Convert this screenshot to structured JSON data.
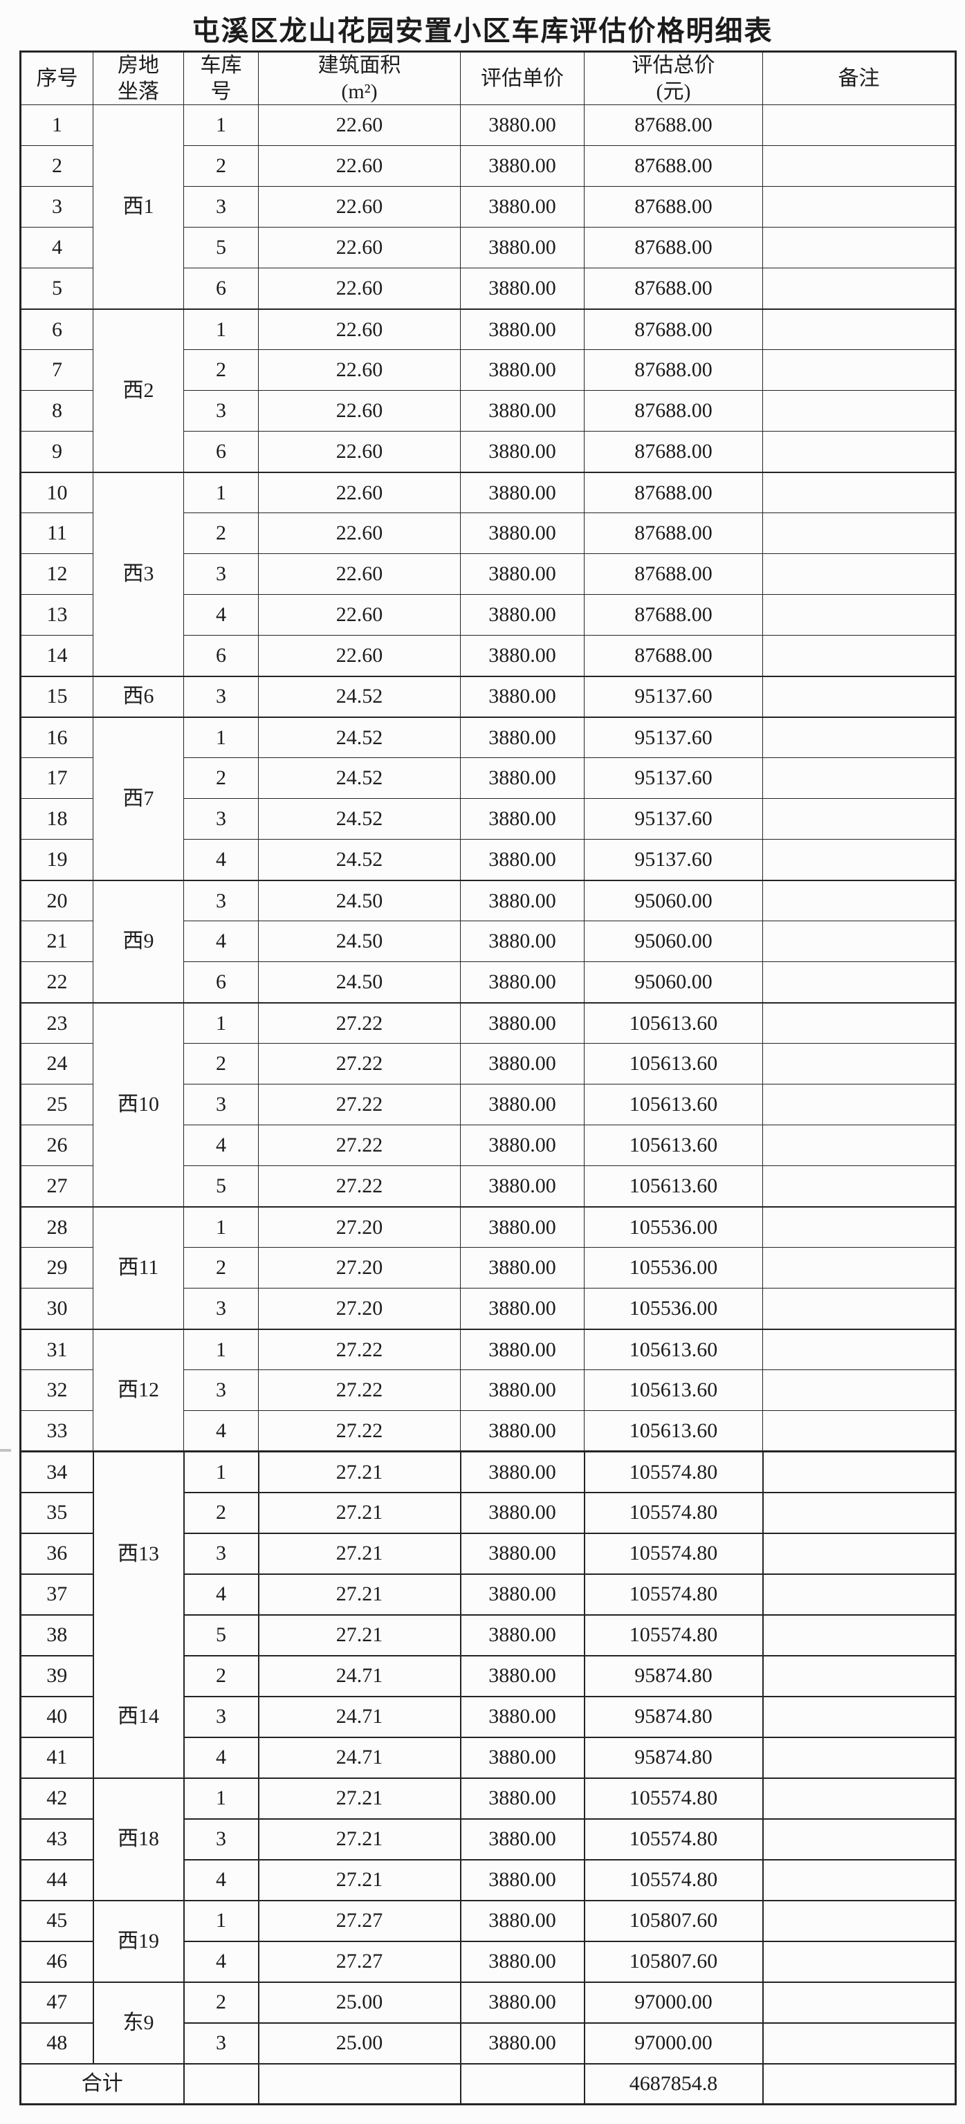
{
  "page": {
    "title": "屯溪区龙山花园安置小区车库评估价格明细表"
  },
  "table": {
    "headers": {
      "no": "序号",
      "location": "房地\n坐落",
      "garage": "车库\n号",
      "area": "建筑面积\n(m²)",
      "unit_price": "评估单价",
      "total_price": "评估总价\n(元)",
      "note": "备注"
    },
    "groups": [
      {
        "location": "西1",
        "items": [
          {
            "no": "1",
            "garage": "1",
            "area": "22.60",
            "unit_price": "3880.00",
            "total_price": "87688.00",
            "note": ""
          },
          {
            "no": "2",
            "garage": "2",
            "area": "22.60",
            "unit_price": "3880.00",
            "total_price": "87688.00",
            "note": ""
          },
          {
            "no": "3",
            "garage": "3",
            "area": "22.60",
            "unit_price": "3880.00",
            "total_price": "87688.00",
            "note": ""
          },
          {
            "no": "4",
            "garage": "5",
            "area": "22.60",
            "unit_price": "3880.00",
            "total_price": "87688.00",
            "note": ""
          },
          {
            "no": "5",
            "garage": "6",
            "area": "22.60",
            "unit_price": "3880.00",
            "total_price": "87688.00",
            "note": ""
          }
        ]
      },
      {
        "location": "西2",
        "items": [
          {
            "no": "6",
            "garage": "1",
            "area": "22.60",
            "unit_price": "3880.00",
            "total_price": "87688.00",
            "note": ""
          },
          {
            "no": "7",
            "garage": "2",
            "area": "22.60",
            "unit_price": "3880.00",
            "total_price": "87688.00",
            "note": ""
          },
          {
            "no": "8",
            "garage": "3",
            "area": "22.60",
            "unit_price": "3880.00",
            "total_price": "87688.00",
            "note": ""
          },
          {
            "no": "9",
            "garage": "6",
            "area": "22.60",
            "unit_price": "3880.00",
            "total_price": "87688.00",
            "note": ""
          }
        ]
      },
      {
        "location": "西3",
        "items": [
          {
            "no": "10",
            "garage": "1",
            "area": "22.60",
            "unit_price": "3880.00",
            "total_price": "87688.00",
            "note": ""
          },
          {
            "no": "11",
            "garage": "2",
            "area": "22.60",
            "unit_price": "3880.00",
            "total_price": "87688.00",
            "note": ""
          },
          {
            "no": "12",
            "garage": "3",
            "area": "22.60",
            "unit_price": "3880.00",
            "total_price": "87688.00",
            "note": ""
          },
          {
            "no": "13",
            "garage": "4",
            "area": "22.60",
            "unit_price": "3880.00",
            "total_price": "87688.00",
            "note": ""
          },
          {
            "no": "14",
            "garage": "6",
            "area": "22.60",
            "unit_price": "3880.00",
            "total_price": "87688.00",
            "note": ""
          }
        ]
      },
      {
        "location": "西6",
        "items": [
          {
            "no": "15",
            "garage": "3",
            "area": "24.52",
            "unit_price": "3880.00",
            "total_price": "95137.60",
            "note": ""
          }
        ]
      },
      {
        "location": "西7",
        "items": [
          {
            "no": "16",
            "garage": "1",
            "area": "24.52",
            "unit_price": "3880.00",
            "total_price": "95137.60",
            "note": ""
          },
          {
            "no": "17",
            "garage": "2",
            "area": "24.52",
            "unit_price": "3880.00",
            "total_price": "95137.60",
            "note": ""
          },
          {
            "no": "18",
            "garage": "3",
            "area": "24.52",
            "unit_price": "3880.00",
            "total_price": "95137.60",
            "note": ""
          },
          {
            "no": "19",
            "garage": "4",
            "area": "24.52",
            "unit_price": "3880.00",
            "total_price": "95137.60",
            "note": ""
          }
        ]
      },
      {
        "location": "西9",
        "items": [
          {
            "no": "20",
            "garage": "3",
            "area": "24.50",
            "unit_price": "3880.00",
            "total_price": "95060.00",
            "note": ""
          },
          {
            "no": "21",
            "garage": "4",
            "area": "24.50",
            "unit_price": "3880.00",
            "total_price": "95060.00",
            "note": ""
          },
          {
            "no": "22",
            "garage": "6",
            "area": "24.50",
            "unit_price": "3880.00",
            "total_price": "95060.00",
            "note": ""
          }
        ]
      },
      {
        "location": "西10",
        "items": [
          {
            "no": "23",
            "garage": "1",
            "area": "27.22",
            "unit_price": "3880.00",
            "total_price": "105613.60",
            "note": ""
          },
          {
            "no": "24",
            "garage": "2",
            "area": "27.22",
            "unit_price": "3880.00",
            "total_price": "105613.60",
            "note": ""
          },
          {
            "no": "25",
            "garage": "3",
            "area": "27.22",
            "unit_price": "3880.00",
            "total_price": "105613.60",
            "note": ""
          },
          {
            "no": "26",
            "garage": "4",
            "area": "27.22",
            "unit_price": "3880.00",
            "total_price": "105613.60",
            "note": ""
          },
          {
            "no": "27",
            "garage": "5",
            "area": "27.22",
            "unit_price": "3880.00",
            "total_price": "105613.60",
            "note": ""
          }
        ]
      },
      {
        "location": "西11",
        "items": [
          {
            "no": "28",
            "garage": "1",
            "area": "27.20",
            "unit_price": "3880.00",
            "total_price": "105536.00",
            "note": ""
          },
          {
            "no": "29",
            "garage": "2",
            "area": "27.20",
            "unit_price": "3880.00",
            "total_price": "105536.00",
            "note": ""
          },
          {
            "no": "30",
            "garage": "3",
            "area": "27.20",
            "unit_price": "3880.00",
            "total_price": "105536.00",
            "note": ""
          }
        ]
      },
      {
        "location": "西12",
        "items": [
          {
            "no": "31",
            "garage": "1",
            "area": "27.22",
            "unit_price": "3880.00",
            "total_price": "105613.60",
            "note": ""
          },
          {
            "no": "32",
            "garage": "3",
            "area": "27.22",
            "unit_price": "3880.00",
            "total_price": "105613.60",
            "note": ""
          },
          {
            "no": "33",
            "garage": "4",
            "area": "27.22",
            "unit_price": "3880.00",
            "total_price": "105613.60",
            "note": ""
          }
        ]
      },
      {
        "location": "西13",
        "items": [
          {
            "no": "34",
            "garage": "1",
            "area": "27.21",
            "unit_price": "3880.00",
            "total_price": "105574.80",
            "note": ""
          },
          {
            "no": "35",
            "garage": "2",
            "area": "27.21",
            "unit_price": "3880.00",
            "total_price": "105574.80",
            "note": ""
          },
          {
            "no": "36",
            "garage": "3",
            "area": "27.21",
            "unit_price": "3880.00",
            "total_price": "105574.80",
            "note": ""
          },
          {
            "no": "37",
            "garage": "4",
            "area": "27.21",
            "unit_price": "3880.00",
            "total_price": "105574.80",
            "note": ""
          },
          {
            "no": "38",
            "garage": "5",
            "area": "27.21",
            "unit_price": "3880.00",
            "total_price": "105574.80",
            "note": ""
          }
        ]
      },
      {
        "location": "西14",
        "items": [
          {
            "no": "39",
            "garage": "2",
            "area": "24.71",
            "unit_price": "3880.00",
            "total_price": "95874.80",
            "note": ""
          },
          {
            "no": "40",
            "garage": "3",
            "area": "24.71",
            "unit_price": "3880.00",
            "total_price": "95874.80",
            "note": ""
          },
          {
            "no": "41",
            "garage": "4",
            "area": "24.71",
            "unit_price": "3880.00",
            "total_price": "95874.80",
            "note": ""
          }
        ]
      },
      {
        "location": "西18",
        "items": [
          {
            "no": "42",
            "garage": "1",
            "area": "27.21",
            "unit_price": "3880.00",
            "total_price": "105574.80",
            "note": ""
          },
          {
            "no": "43",
            "garage": "3",
            "area": "27.21",
            "unit_price": "3880.00",
            "total_price": "105574.80",
            "note": ""
          },
          {
            "no": "44",
            "garage": "4",
            "area": "27.21",
            "unit_price": "3880.00",
            "total_price": "105574.80",
            "note": ""
          }
        ]
      },
      {
        "location": "西19",
        "items": [
          {
            "no": "45",
            "garage": "1",
            "area": "27.27",
            "unit_price": "3880.00",
            "total_price": "105807.60",
            "note": ""
          },
          {
            "no": "46",
            "garage": "4",
            "area": "27.27",
            "unit_price": "3880.00",
            "total_price": "105807.60",
            "note": ""
          }
        ]
      },
      {
        "location": "东9",
        "items": [
          {
            "no": "47",
            "garage": "2",
            "area": "25.00",
            "unit_price": "3880.00",
            "total_price": "97000.00",
            "note": ""
          },
          {
            "no": "48",
            "garage": "3",
            "area": "25.00",
            "unit_price": "3880.00",
            "total_price": "97000.00",
            "note": ""
          }
        ]
      }
    ],
    "footer": {
      "label": "合计",
      "garage": "",
      "area": "",
      "unit_price": "",
      "total_price": "4687854.8",
      "note": ""
    }
  }
}
